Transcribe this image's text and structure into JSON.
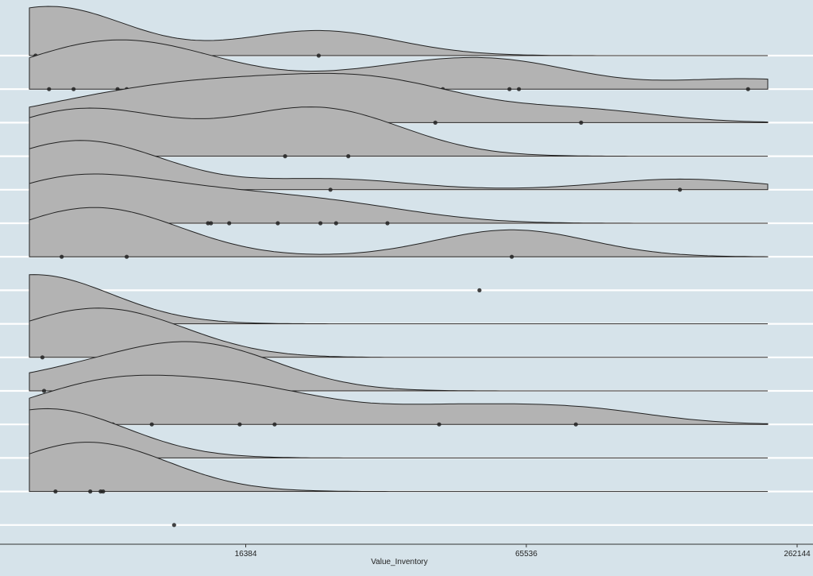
{
  "colors": {
    "background": "#d6e3ea",
    "gridline": "#ffffff",
    "ridge_fill": "#b3b3b3",
    "ridge_stroke": "#222222",
    "point": "#222222",
    "axis": "#333333"
  },
  "chart_data": {
    "type": "ridgeline",
    "title": "",
    "xlabel": "Value_Inventory",
    "ylabel": "",
    "x_scale": "log2",
    "xlim": [
      1100,
      262144
    ],
    "x_ticks": [
      16384,
      65536,
      262144
    ],
    "x_tick_labels": [
      "16384",
      "65536",
      "262144"
    ],
    "grid": "horizontal",
    "legend": "none",
    "rows": [
      {
        "points": [
          5800,
          6600,
          23500
        ]
      },
      {
        "points": [
          6200,
          7000,
          8700,
          9100,
          10900,
          14100,
          30700,
          43400,
          60300,
          63200,
          196000
        ]
      },
      {
        "points": [
          6900,
          10400,
          12700,
          17100,
          21400,
          29100,
          31600,
          41800,
          85900
        ]
      },
      {
        "points": [
          6200,
          8800,
          19900,
          27200
        ]
      },
      {
        "points": [
          5700,
          6700,
          7300,
          7800,
          9000,
          24900,
          140000
        ]
      },
      {
        "points": [
          5800,
          6000,
          6250,
          6350,
          6500,
          6900,
          7850,
          8600,
          9000,
          10800,
          13600,
          13800,
          15100,
          19200,
          23700,
          25600,
          33000
        ]
      },
      {
        "points": [
          6600,
          9100,
          61000
        ]
      },
      {
        "points": [
          52000
        ]
      },
      {
        "points": [
          5700,
          5800
        ]
      },
      {
        "points": [
          6000,
          8700,
          9000
        ]
      },
      {
        "points": [
          6050,
          9400,
          11400,
          13300,
          13800,
          15000
        ]
      },
      {
        "points": [
          6900,
          8500,
          10300,
          15900,
          18900,
          42600,
          83700
        ]
      },
      {
        "points": [
          5700,
          6600
        ]
      },
      {
        "points": [
          6400,
          7600,
          8000,
          8100
        ]
      },
      {
        "points": [
          11500
        ]
      }
    ]
  }
}
